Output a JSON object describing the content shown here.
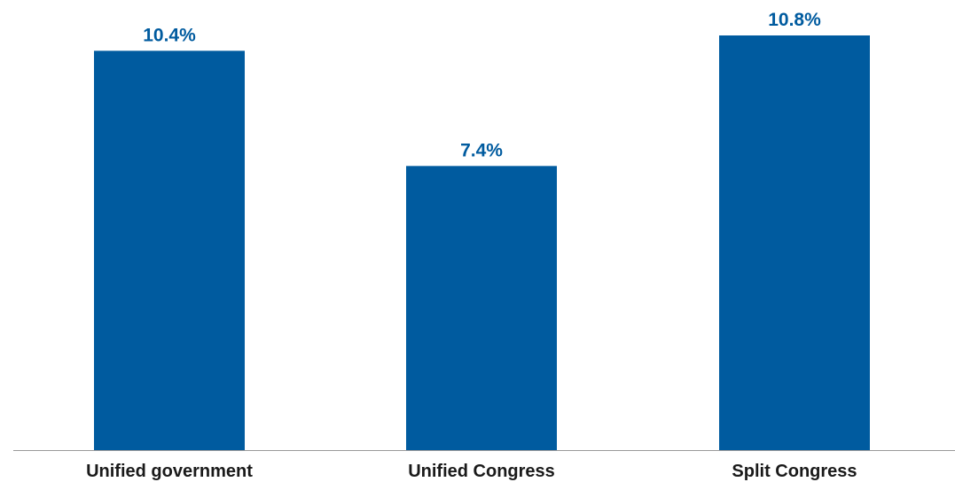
{
  "colors": {
    "bar": "#005b9f",
    "value_label": "#005b9f",
    "axis": "#999999"
  },
  "chart_data": {
    "type": "bar",
    "categories": [
      "Unified government",
      "Unified Congress",
      "Split Congress"
    ],
    "values": [
      10.4,
      7.4,
      10.8
    ],
    "value_labels": [
      "10.4%",
      "7.4%",
      "10.8%"
    ],
    "unit": "%",
    "title": "",
    "xlabel": "",
    "ylabel": "",
    "ylim": [
      0,
      10.8
    ],
    "grid": false,
    "legend": "none"
  }
}
